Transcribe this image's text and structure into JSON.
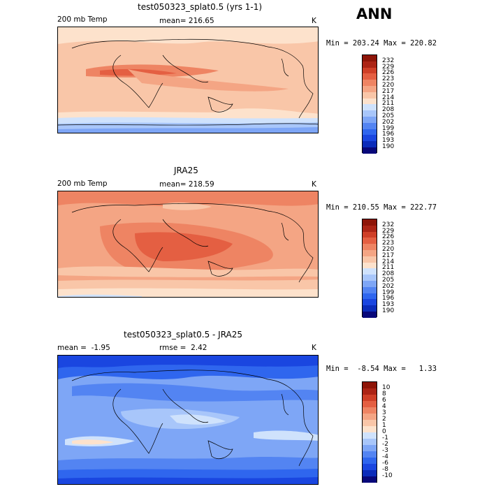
{
  "season_label": "ANN",
  "colors": {
    "abs_scale": [
      "#08087a",
      "#0b2cba",
      "#1a46e0",
      "#2f66ee",
      "#5384f2",
      "#7ea6f6",
      "#a8c6fa",
      "#cfe2fc",
      "#fde2cc",
      "#f9c6a8",
      "#f4a584",
      "#ee8463",
      "#e45f42",
      "#cf3f27",
      "#ac2415",
      "#8e1508"
    ],
    "diff_scale": [
      "#08087a",
      "#0b2cba",
      "#1a46e0",
      "#2f66ee",
      "#5384f2",
      "#7ea6f6",
      "#a8c6fa",
      "#cfe2fc",
      "#fde2cc",
      "#f9c6a8",
      "#f4a584",
      "#ee8463",
      "#e45f42",
      "#cf3f27",
      "#ac2415",
      "#8e1508"
    ]
  },
  "panels": [
    {
      "title": "test050323_splat0.5 (yrs 1-1)",
      "left_label": "200 mb Temp",
      "mean_label": "mean= 216.65",
      "unit": "K",
      "min_max": "Min = 203.24 Max = 220.82",
      "cbar_levels": [
        "232",
        "229",
        "226",
        "223",
        "220",
        "217",
        "214",
        "211",
        "208",
        "205",
        "202",
        "199",
        "196",
        "193",
        "190"
      ]
    },
    {
      "title": "JRA25",
      "left_label": "200 mb Temp",
      "mean_label": "mean= 218.59",
      "unit": "K",
      "min_max": "Min = 210.55 Max = 222.77",
      "cbar_levels": [
        "232",
        "229",
        "226",
        "223",
        "220",
        "217",
        "214",
        "211",
        "208",
        "205",
        "202",
        "199",
        "196",
        "193",
        "190"
      ]
    },
    {
      "title": "test050323_splat0.5 - JRA25",
      "left_label": "mean =  -1.95",
      "mean_label": "rmse =  2.42",
      "unit": "K",
      "min_max": "Min =  -8.54 Max =   1.33",
      "cbar_levels": [
        "10",
        "8",
        "6",
        "4",
        "3",
        "2",
        "1",
        "0",
        "-1",
        "-2",
        "-3",
        "-4",
        "-6",
        "-8",
        "-10"
      ]
    }
  ]
}
